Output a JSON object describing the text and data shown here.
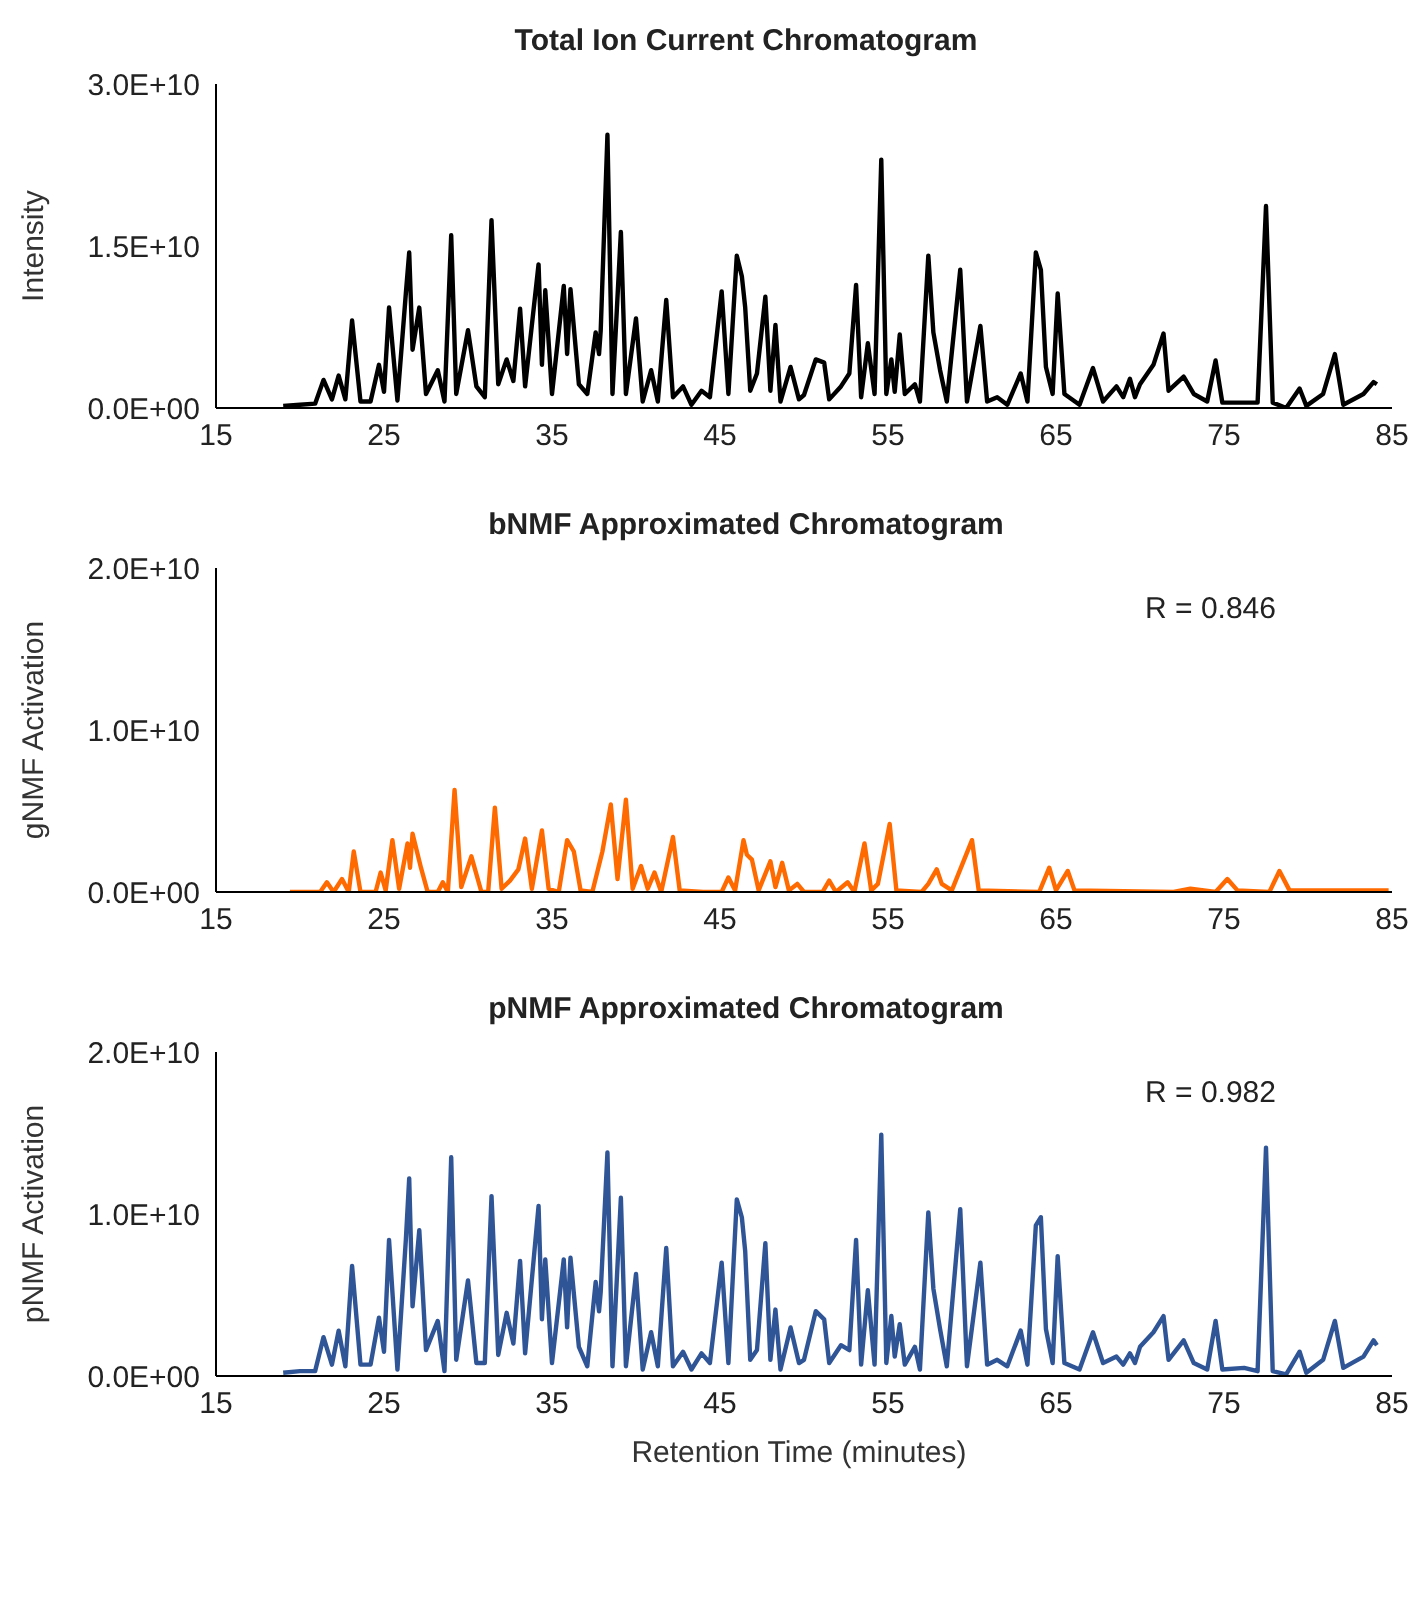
{
  "chart_data": [
    {
      "type": "line",
      "title": "Total Ion Current Chromatogram",
      "ylabel": "Intensity",
      "xlim": [
        15,
        85
      ],
      "xticks": [
        15,
        25,
        35,
        45,
        55,
        65,
        75,
        85
      ],
      "ylim": [
        0,
        30000000000.0
      ],
      "yticks": [
        {
          "value": 0,
          "label": "0.0E+00"
        },
        {
          "value": 15000000000.0,
          "label": "1.5E+10"
        },
        {
          "value": 30000000000.0,
          "label": "3.0E+10"
        }
      ],
      "series": [
        {
          "color": "#000000",
          "x": [
            19.0,
            20.0,
            20.9,
            21.4,
            21.9,
            22.3,
            22.7,
            23.1,
            23.6,
            24.2,
            24.7,
            25.0,
            25.3,
            25.8,
            26.3,
            26.5,
            26.7,
            27.1,
            27.5,
            28.2,
            28.6,
            29.0,
            29.3,
            30.0,
            30.5,
            31.0,
            31.4,
            31.8,
            32.3,
            32.7,
            33.1,
            33.4,
            34.2,
            34.4,
            34.6,
            35.0,
            35.7,
            35.9,
            36.1,
            36.6,
            37.1,
            37.6,
            37.8,
            37.9,
            38.3,
            38.6,
            39.1,
            39.4,
            40.0,
            40.4,
            40.9,
            41.3,
            41.8,
            42.2,
            42.8,
            43.3,
            43.9,
            44.4,
            45.1,
            45.5,
            46.0,
            46.3,
            46.5,
            46.8,
            47.2,
            47.7,
            48.0,
            48.3,
            48.6,
            49.2,
            49.7,
            50.0,
            50.7,
            51.2,
            51.5,
            52.2,
            52.7,
            53.1,
            53.4,
            53.8,
            54.2,
            54.6,
            54.9,
            55.2,
            55.4,
            55.7,
            56.0,
            56.6,
            56.9,
            57.4,
            57.7,
            58.1,
            58.5,
            59.3,
            59.7,
            60.5,
            60.9,
            61.5,
            62.1,
            62.9,
            63.3,
            63.8,
            64.1,
            64.4,
            64.8,
            65.1,
            65.5,
            66.4,
            67.2,
            67.8,
            68.6,
            69.0,
            69.4,
            69.7,
            70.0,
            70.8,
            71.4,
            71.7,
            72.6,
            73.2,
            74.0,
            74.5,
            74.9,
            76.2,
            77.0,
            77.5,
            77.9,
            78.7,
            79.5,
            79.9,
            80.9,
            81.6,
            82.1,
            83.3,
            83.9,
            84.1
          ],
          "values": [
            200000000.0,
            300000000.0,
            400000000.0,
            2600000000.0,
            800000000.0,
            3000000000.0,
            800000000.0,
            8100000000.0,
            600000000.0,
            600000000.0,
            4000000000.0,
            1500000000.0,
            9300000000.0,
            700000000.0,
            10600000000.0,
            14400000000.0,
            5400000000.0,
            9300000000.0,
            1300000000.0,
            3500000000.0,
            600000000.0,
            16000000000.0,
            1300000000.0,
            7200000000.0,
            2000000000.0,
            1000000000.0,
            17400000000.0,
            2200000000.0,
            4500000000.0,
            2500000000.0,
            9200000000.0,
            2000000000.0,
            13300000000.0,
            4000000000.0,
            10900000000.0,
            1300000000.0,
            11300000000.0,
            5000000000.0,
            11000000000.0,
            2200000000.0,
            1300000000.0,
            7000000000.0,
            5000000000.0,
            7200000000.0,
            25300000000.0,
            1300000000.0,
            16300000000.0,
            1300000000.0,
            8300000000.0,
            600000000.0,
            3500000000.0,
            600000000.0,
            10000000000.0,
            1000000000.0,
            2000000000.0,
            300000000.0,
            1600000000.0,
            1000000000.0,
            10800000000.0,
            1300000000.0,
            14100000000.0,
            12200000000.0,
            9300000000.0,
            1600000000.0,
            3200000000.0,
            10300000000.0,
            1600000000.0,
            7700000000.0,
            600000000.0,
            3800000000.0,
            800000000.0,
            1200000000.0,
            4500000000.0,
            4200000000.0,
            800000000.0,
            2000000000.0,
            3200000000.0,
            11400000000.0,
            1000000000.0,
            6000000000.0,
            1300000000.0,
            23000000000.0,
            1300000000.0,
            4500000000.0,
            1500000000.0,
            6800000000.0,
            1300000000.0,
            2200000000.0,
            600000000.0,
            14100000000.0,
            7000000000.0,
            3500000000.0,
            600000000.0,
            12800000000.0,
            600000000.0,
            7600000000.0,
            600000000.0,
            1000000000.0,
            300000000.0,
            3200000000.0,
            600000000.0,
            14400000000.0,
            12800000000.0,
            3800000000.0,
            1300000000.0,
            10600000000.0,
            1300000000.0,
            300000000.0,
            3700000000.0,
            600000000.0,
            2000000000.0,
            1000000000.0,
            2700000000.0,
            1000000000.0,
            2200000000.0,
            4000000000.0,
            6900000000.0,
            1600000000.0,
            2900000000.0,
            1300000000.0,
            600000000.0,
            4400000000.0,
            500000000.0,
            500000000.0,
            500000000.0,
            18700000000.0,
            500000000.0,
            0,
            1800000000.0,
            200000000.0,
            1300000000.0,
            5000000000.0,
            300000000.0,
            1300000000.0,
            2400000000.0,
            2200000000.0
          ]
        }
      ]
    },
    {
      "type": "line",
      "title": "bNMF Approximated Chromatogram",
      "ylabel": "gNMF Activation",
      "annotations": [
        "R = 0.846"
      ],
      "xlim": [
        15,
        85
      ],
      "xticks": [
        15,
        25,
        35,
        45,
        55,
        65,
        75,
        85
      ],
      "ylim": [
        0,
        20000000000.0
      ],
      "yticks": [
        {
          "value": 0,
          "label": "0.0E+00"
        },
        {
          "value": 10000000000.0,
          "label": "1.0E+10"
        },
        {
          "value": 20000000000.0,
          "label": "2.0E+10"
        }
      ],
      "series": [
        {
          "color": "#ff6a00",
          "x": [
            19.4,
            21.2,
            21.6,
            22.0,
            22.5,
            22.9,
            23.2,
            23.6,
            24.5,
            24.8,
            25.1,
            25.5,
            25.9,
            26.4,
            26.55,
            26.7,
            27.2,
            27.6,
            28.2,
            28.5,
            28.8,
            29.2,
            29.6,
            30.2,
            30.8,
            31.2,
            31.6,
            32.0,
            32.5,
            33.0,
            33.4,
            33.8,
            34.4,
            34.8,
            35.4,
            35.9,
            36.3,
            36.7,
            37.4,
            38.0,
            38.5,
            38.9,
            39.4,
            39.8,
            40.3,
            40.7,
            41.1,
            41.5,
            42.2,
            42.6,
            44.0,
            45.1,
            45.5,
            45.9,
            46.4,
            46.6,
            46.9,
            47.3,
            48.0,
            48.3,
            48.7,
            49.1,
            49.6,
            50.0,
            51.1,
            51.5,
            51.9,
            52.6,
            53.0,
            53.6,
            54.0,
            54.4,
            55.1,
            55.5,
            57.0,
            57.4,
            57.9,
            58.2,
            58.8,
            60.0,
            60.4,
            64.0,
            64.6,
            65.0,
            65.7,
            66.1,
            72.0,
            73.0,
            74.5,
            75.2,
            75.8,
            77.7,
            78.3,
            78.9,
            84.8
          ],
          "values": [
            0,
            0,
            600000000.0,
            0,
            800000000.0,
            0,
            2500000000.0,
            0,
            0,
            1200000000.0,
            100000000.0,
            3200000000.0,
            200000000.0,
            3000000000.0,
            1500000000.0,
            3600000000.0,
            1500000000.0,
            0,
            0,
            600000000.0,
            0,
            6300000000.0,
            300000000.0,
            2200000000.0,
            0,
            0,
            5200000000.0,
            200000000.0,
            700000000.0,
            1400000000.0,
            3300000000.0,
            200000000.0,
            3800000000.0,
            200000000.0,
            0,
            3200000000.0,
            2500000000.0,
            100000000.0,
            0,
            2500000000.0,
            5400000000.0,
            800000000.0,
            5700000000.0,
            200000000.0,
            1600000000.0,
            200000000.0,
            1200000000.0,
            0,
            3400000000.0,
            100000000.0,
            0,
            0,
            900000000.0,
            100000000.0,
            3200000000.0,
            2300000000.0,
            2000000000.0,
            100000000.0,
            1900000000.0,
            300000000.0,
            1800000000.0,
            100000000.0,
            500000000.0,
            0,
            0,
            700000000.0,
            0,
            600000000.0,
            0,
            3000000000.0,
            100000000.0,
            500000000.0,
            4200000000.0,
            100000000.0,
            0,
            500000000.0,
            1400000000.0,
            500000000.0,
            100000000.0,
            3200000000.0,
            100000000.0,
            0,
            1500000000.0,
            100000000.0,
            1300000000.0,
            100000000.0,
            0,
            200000000.0,
            0,
            800000000.0,
            100000000.0,
            0,
            1300000000.0,
            100000000.0,
            100000000.0
          ]
        }
      ]
    },
    {
      "type": "line",
      "title": "pNMF Approximated Chromatogram",
      "ylabel": "pNMF Activation",
      "xlabel": "Retention Time (minutes)",
      "annotations": [
        "R = 0.982"
      ],
      "xlim": [
        15,
        85
      ],
      "xticks": [
        15,
        25,
        35,
        45,
        55,
        65,
        75,
        85
      ],
      "ylim": [
        0,
        20000000000.0
      ],
      "yticks": [
        {
          "value": 0,
          "label": "0.0E+00"
        },
        {
          "value": 10000000000.0,
          "label": "1.0E+10"
        },
        {
          "value": 20000000000.0,
          "label": "2.0E+10"
        }
      ],
      "series": [
        {
          "color": "#2f5597",
          "x": [
            19.0,
            20.0,
            20.9,
            21.4,
            21.9,
            22.3,
            22.7,
            23.1,
            23.6,
            24.2,
            24.7,
            25.0,
            25.3,
            25.8,
            26.3,
            26.5,
            26.7,
            27.1,
            27.5,
            28.2,
            28.6,
            29.0,
            29.3,
            30.0,
            30.5,
            31.0,
            31.4,
            31.8,
            32.3,
            32.7,
            33.1,
            33.4,
            34.2,
            34.4,
            34.6,
            35.0,
            35.7,
            35.9,
            36.1,
            36.6,
            37.1,
            37.6,
            37.8,
            37.9,
            38.3,
            38.6,
            39.1,
            39.4,
            40.0,
            40.4,
            40.9,
            41.3,
            41.8,
            42.2,
            42.8,
            43.3,
            43.9,
            44.4,
            45.1,
            45.5,
            46.0,
            46.3,
            46.5,
            46.8,
            47.2,
            47.7,
            48.0,
            48.3,
            48.6,
            49.2,
            49.7,
            50.0,
            50.7,
            51.2,
            51.5,
            52.2,
            52.7,
            53.1,
            53.4,
            53.8,
            54.2,
            54.6,
            54.9,
            55.2,
            55.4,
            55.7,
            56.0,
            56.6,
            56.9,
            57.4,
            57.7,
            58.1,
            58.5,
            59.3,
            59.7,
            60.5,
            60.9,
            61.5,
            62.1,
            62.9,
            63.3,
            63.8,
            64.1,
            64.4,
            64.8,
            65.1,
            65.5,
            66.4,
            67.2,
            67.8,
            68.6,
            69.0,
            69.4,
            69.7,
            70.0,
            70.8,
            71.4,
            71.7,
            72.6,
            73.2,
            74.0,
            74.5,
            74.9,
            76.2,
            77.0,
            77.5,
            77.9,
            78.7,
            79.5,
            79.9,
            80.9,
            81.6,
            82.1,
            83.3,
            83.9,
            84.1
          ],
          "values": [
            200000000.0,
            300000000.0,
            300000000.0,
            2400000000.0,
            700000000.0,
            2800000000.0,
            600000000.0,
            6800000000.0,
            700000000.0,
            700000000.0,
            3600000000.0,
            1500000000.0,
            8400000000.0,
            400000000.0,
            8400000000.0,
            12200000000.0,
            4300000000.0,
            9000000000.0,
            1600000000.0,
            3400000000.0,
            300000000.0,
            13500000000.0,
            1000000000.0,
            5900000000.0,
            800000000.0,
            800000000.0,
            11100000000.0,
            1300000000.0,
            3900000000.0,
            2000000000.0,
            7100000000.0,
            1400000000.0,
            10500000000.0,
            3500000000.0,
            7200000000.0,
            800000000.0,
            7200000000.0,
            3000000000.0,
            7300000000.0,
            1800000000.0,
            600000000.0,
            5800000000.0,
            4000000000.0,
            5200000000.0,
            13800000000.0,
            600000000.0,
            11000000000.0,
            600000000.0,
            6300000000.0,
            400000000.0,
            2700000000.0,
            600000000.0,
            7900000000.0,
            600000000.0,
            1500000000.0,
            400000000.0,
            1400000000.0,
            800000000.0,
            7000000000.0,
            800000000.0,
            10900000000.0,
            9800000000.0,
            7700000000.0,
            1000000000.0,
            1600000000.0,
            8200000000.0,
            1000000000.0,
            4100000000.0,
            400000000.0,
            3000000000.0,
            800000000.0,
            1000000000.0,
            4000000000.0,
            3500000000.0,
            800000000.0,
            1900000000.0,
            1600000000.0,
            8400000000.0,
            700000000.0,
            5300000000.0,
            700000000.0,
            14900000000.0,
            800000000.0,
            3700000000.0,
            1200000000.0,
            3200000000.0,
            700000000.0,
            1800000000.0,
            400000000.0,
            10100000000.0,
            5400000000.0,
            2900000000.0,
            600000000.0,
            10300000000.0,
            600000000.0,
            7000000000.0,
            700000000.0,
            1000000000.0,
            600000000.0,
            2800000000.0,
            700000000.0,
            9300000000.0,
            9800000000.0,
            2900000000.0,
            800000000.0,
            7400000000.0,
            800000000.0,
            400000000.0,
            2700000000.0,
            800000000.0,
            1200000000.0,
            700000000.0,
            1400000000.0,
            800000000.0,
            1800000000.0,
            2700000000.0,
            3700000000.0,
            1000000000.0,
            2200000000.0,
            800000000.0,
            400000000.0,
            3400000000.0,
            400000000.0,
            500000000.0,
            300000000.0,
            14100000000.0,
            300000000.0,
            100000000.0,
            1500000000.0,
            200000000.0,
            1000000000.0,
            3400000000.0,
            500000000.0,
            1200000000.0,
            2200000000.0,
            1900000000.0
          ]
        }
      ]
    }
  ]
}
